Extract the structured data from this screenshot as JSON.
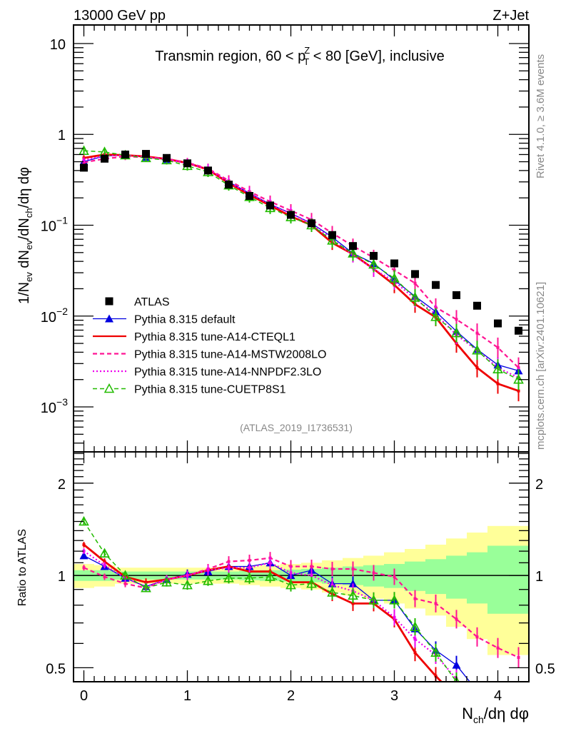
{
  "header": {
    "energy_label": "13000 GeV pp",
    "process_label": "Z+Jet"
  },
  "side_labels": {
    "rivet": "Rivet 4.1.0, ≥ 3.6M events",
    "mcplots": "mcplots.cern.ch [arXiv:2401.10621]"
  },
  "chart_data": [
    {
      "type": "line",
      "panel": "main",
      "title": "Transmin region, 60 < p_T^Z < 80 [GeV], inclusive",
      "title_parts": {
        "pre": "Transmin region, 60 < p",
        "sup": "Z",
        "sub": "T",
        "post": " < 80 [GeV], inclusive"
      },
      "ylabel": "1/N_ev dN_ev/dN_ch/dη dφ",
      "xlabel": "N_ch/dη dφ",
      "yscale": "log",
      "ylim": [
        0.00032,
        16
      ],
      "xlim": [
        -0.1,
        4.3
      ],
      "ytick_labels": [
        "10",
        "1",
        "10⁻¹",
        "10⁻²",
        "10⁻³"
      ],
      "ytick_values": [
        10,
        1,
        0.1,
        0.01,
        0.001
      ],
      "analysis_label": "(ATLAS_2019_I1736531)",
      "legend_position": "lower-left",
      "x": [
        0.0,
        0.2,
        0.4,
        0.6,
        0.8,
        1.0,
        1.2,
        1.4,
        1.6,
        1.8,
        2.0,
        2.2,
        2.4,
        2.6,
        2.8,
        3.0,
        3.2,
        3.4,
        3.6,
        3.8,
        4.0,
        4.2
      ],
      "series": [
        {
          "name": "ATLAS",
          "style": "marker-square",
          "color": "#000000",
          "values": [
            0.43,
            0.54,
            0.6,
            0.61,
            0.55,
            0.48,
            0.4,
            0.28,
            0.21,
            0.165,
            0.13,
            0.105,
            0.078,
            0.059,
            0.046,
            0.038,
            0.029,
            0.022,
            0.017,
            0.013,
            0.0083,
            0.0069
          ]
        },
        {
          "name": "Pythia 8.315 default",
          "style": "solid-triangle",
          "color": "#0000e0",
          "values": [
            0.5,
            0.58,
            0.59,
            0.56,
            0.53,
            0.48,
            0.41,
            0.3,
            0.225,
            0.17,
            0.135,
            0.105,
            0.074,
            0.049,
            0.038,
            0.025,
            0.0165,
            0.0112,
            0.0068,
            0.0043,
            0.0029,
            0.0025
          ]
        },
        {
          "name": "Pythia 8.315 tune-A14-CTEQL1",
          "style": "solid-thick",
          "color": "#ee0000",
          "values": [
            0.55,
            0.6,
            0.59,
            0.57,
            0.535,
            0.485,
            0.41,
            0.29,
            0.215,
            0.165,
            0.125,
            0.1,
            0.064,
            0.048,
            0.033,
            0.022,
            0.0135,
            0.0097,
            0.005,
            0.0027,
            0.0018,
            0.0015
          ]
        },
        {
          "name": "Pythia 8.315 tune-A14-MSTW2008LO",
          "style": "dashed",
          "color": "#ff1493",
          "values": [
            0.49,
            0.54,
            0.57,
            0.56,
            0.54,
            0.49,
            0.42,
            0.31,
            0.235,
            0.182,
            0.145,
            0.115,
            0.082,
            0.059,
            0.044,
            0.032,
            0.023,
            0.0125,
            0.0092,
            0.0065,
            0.0045,
            0.0027
          ]
        },
        {
          "name": "Pythia 8.315 tune-A14-NNPDF2.3LO",
          "style": "dotted",
          "color": "#ee00ee",
          "values": [
            0.52,
            0.58,
            0.59,
            0.56,
            0.53,
            0.48,
            0.415,
            0.295,
            0.225,
            0.17,
            0.135,
            0.104,
            0.07,
            0.047,
            0.033,
            0.024,
            0.0155,
            0.0105,
            0.0062,
            0.0042,
            0.0027,
            0.0021
          ]
        },
        {
          "name": "Pythia 8.315 tune-CUETP8S1",
          "style": "dashed-open-triangle",
          "color": "#22bb00",
          "values": [
            0.66,
            0.64,
            0.59,
            0.55,
            0.52,
            0.45,
            0.385,
            0.275,
            0.205,
            0.155,
            0.123,
            0.1,
            0.068,
            0.049,
            0.037,
            0.026,
            0.016,
            0.0098,
            0.0065,
            0.0042,
            0.0026,
            0.002
          ]
        }
      ]
    },
    {
      "type": "line",
      "panel": "ratio",
      "ylabel": "Ratio to ATLAS",
      "xlabel": "N_ch/dη dφ",
      "yscale": "log",
      "ylim": [
        0.45,
        2.53
      ],
      "ytick_labels": [
        "2",
        "1",
        "0.5"
      ],
      "ytick_values": [
        2,
        1,
        0.5
      ],
      "xtick_labels": [
        "0",
        "1",
        "2",
        "3",
        "4"
      ],
      "xtick_values": [
        0,
        1,
        2,
        3,
        4
      ],
      "x": [
        0.0,
        0.2,
        0.4,
        0.6,
        0.8,
        1.0,
        1.2,
        1.4,
        1.6,
        1.8,
        2.0,
        2.2,
        2.4,
        2.6,
        2.8,
        3.0,
        3.2,
        3.4,
        3.6,
        3.8,
        4.0,
        4.2
      ],
      "bands": {
        "stat_color": "#99ff99",
        "total_color": "#ffff99",
        "stat_half_width": [
          0.04,
          0.04,
          0.03,
          0.03,
          0.03,
          0.03,
          0.03,
          0.03,
          0.035,
          0.04,
          0.045,
          0.05,
          0.06,
          0.07,
          0.08,
          0.09,
          0.11,
          0.13,
          0.16,
          0.19,
          0.25,
          0.25
        ],
        "total_half_width": [
          0.09,
          0.08,
          0.06,
          0.06,
          0.06,
          0.06,
          0.06,
          0.06,
          0.07,
          0.08,
          0.09,
          0.1,
          0.12,
          0.14,
          0.16,
          0.19,
          0.22,
          0.26,
          0.32,
          0.38,
          0.45,
          0.45
        ]
      },
      "series": [
        {
          "name": "Pythia 8.315 default",
          "color": "#0000e0",
          "values": [
            1.16,
            1.07,
            0.98,
            0.92,
            0.97,
            1.01,
            1.03,
            1.07,
            1.07,
            1.1,
            1.0,
            1.04,
            0.94,
            0.94,
            0.83,
            0.83,
            0.67,
            0.57,
            0.51,
            0.42,
            null,
            null
          ]
        },
        {
          "name": "Pythia 8.315 tune-A14-CTEQL1",
          "color": "#ee0000",
          "values": [
            1.26,
            1.11,
            0.99,
            0.95,
            0.97,
            1.0,
            1.04,
            1.07,
            1.03,
            1.03,
            0.95,
            0.95,
            0.87,
            0.81,
            0.81,
            0.72,
            0.56,
            0.47,
            0.4,
            null,
            null,
            null
          ]
        },
        {
          "name": "Pythia 8.315 tune-A14-MSTW2008LO",
          "color": "#ff1493",
          "values": [
            1.06,
            0.99,
            0.94,
            0.91,
            0.97,
            1.0,
            1.05,
            1.11,
            1.12,
            1.14,
            1.07,
            1.07,
            1.05,
            1.05,
            1.02,
            0.99,
            0.84,
            0.81,
            0.72,
            0.63,
            0.58,
            0.54
          ]
        },
        {
          "name": "Pythia 8.315 tune-A14-NNPDF2.3LO",
          "color": "#ee00ee",
          "values": [
            1.2,
            1.08,
            0.98,
            0.92,
            0.97,
            1.0,
            1.04,
            1.06,
            1.06,
            1.1,
            1.02,
            1.0,
            0.93,
            0.89,
            0.83,
            0.73,
            0.62,
            0.55,
            0.46,
            0.4,
            null,
            null
          ]
        },
        {
          "name": "Pythia 8.315 tune-CUETP8S1",
          "color": "#22bb00",
          "values": [
            1.5,
            1.18,
            1.0,
            0.91,
            0.95,
            0.93,
            0.96,
            0.98,
            0.98,
            0.99,
            0.93,
            0.94,
            0.88,
            0.86,
            0.83,
            0.83,
            0.68,
            0.56,
            0.45,
            null,
            null,
            null
          ]
        }
      ]
    }
  ]
}
